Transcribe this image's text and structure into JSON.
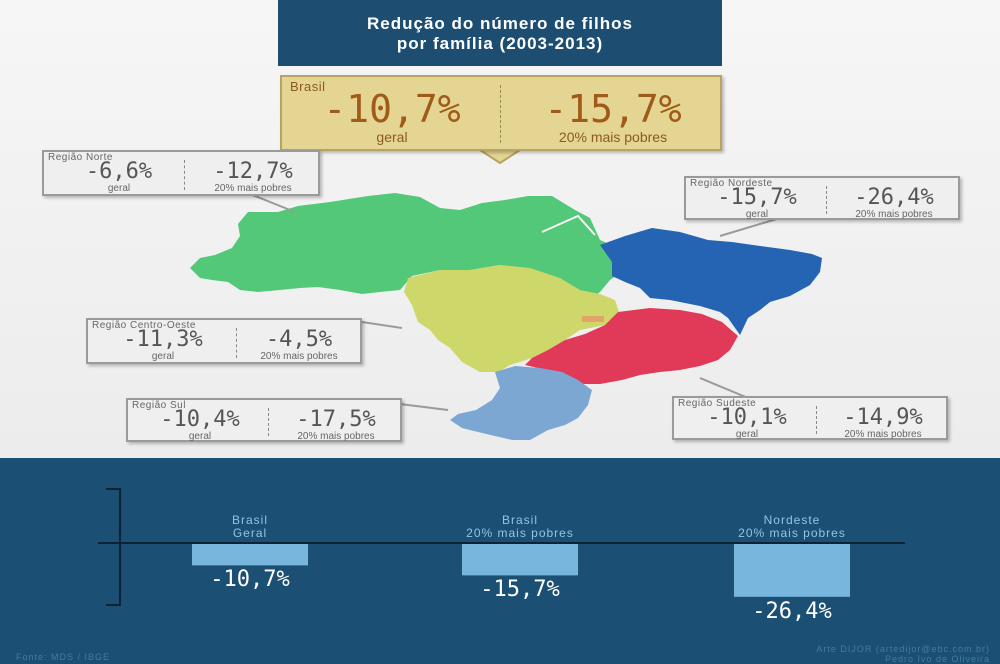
{
  "title": {
    "line1": "Redução do número de filhos",
    "line2": "por família (2003-2013)"
  },
  "regions": {
    "brasil": {
      "name": "Brasil",
      "geral": "-10,7%",
      "geral_label": "geral",
      "pobres": "-15,7%",
      "pobres_label": "20% mais pobres"
    },
    "norte": {
      "name": "Região Norte",
      "geral": "-6,6%",
      "geral_label": "geral",
      "pobres": "-12,7%",
      "pobres_label": "20% mais pobres",
      "color": "#52c878"
    },
    "nordeste": {
      "name": "Região Nordeste",
      "geral": "-15,7%",
      "geral_label": "geral",
      "pobres": "-26,4%",
      "pobres_label": "20% mais pobres",
      "color": "#2563b3"
    },
    "centro_oeste": {
      "name": "Região Centro-Oeste",
      "geral": "-11,3%",
      "geral_label": "geral",
      "pobres": "-4,5%",
      "pobres_label": "20% mais pobres",
      "color": "#cdd76a"
    },
    "sudeste": {
      "name": "Região Sudeste",
      "geral": "-10,1%",
      "geral_label": "geral",
      "pobres": "-14,9%",
      "pobres_label": "20% mais pobres",
      "color": "#e03a58"
    },
    "sul": {
      "name": "Região Sul",
      "geral": "-10,4%",
      "geral_label": "geral",
      "pobres": "-17,5%",
      "pobres_label": "20% mais pobres",
      "color": "#7ba7d2"
    }
  },
  "chart_data": {
    "type": "bar",
    "categories": [
      {
        "line1": "Brasil",
        "line2": "Geral"
      },
      {
        "line1": "Brasil",
        "line2": "20% mais pobres"
      },
      {
        "line1": "Nordeste",
        "line2": "20% mais pobres"
      }
    ],
    "values": [
      -10.7,
      -15.7,
      -26.4
    ],
    "value_labels": [
      "-10,7%",
      "-15,7%",
      "-26,4%"
    ],
    "ylim": [
      -30,
      0
    ],
    "bar_color": "#79b6dd",
    "title": "",
    "xlabel": "",
    "ylabel": ""
  },
  "footer": {
    "source": "Fonte: MDS / IBGE",
    "credit1": "Arte DIJOR (artedijor@ebc.com.br)",
    "credit2": "Pedro Ivo de Oliveira"
  }
}
